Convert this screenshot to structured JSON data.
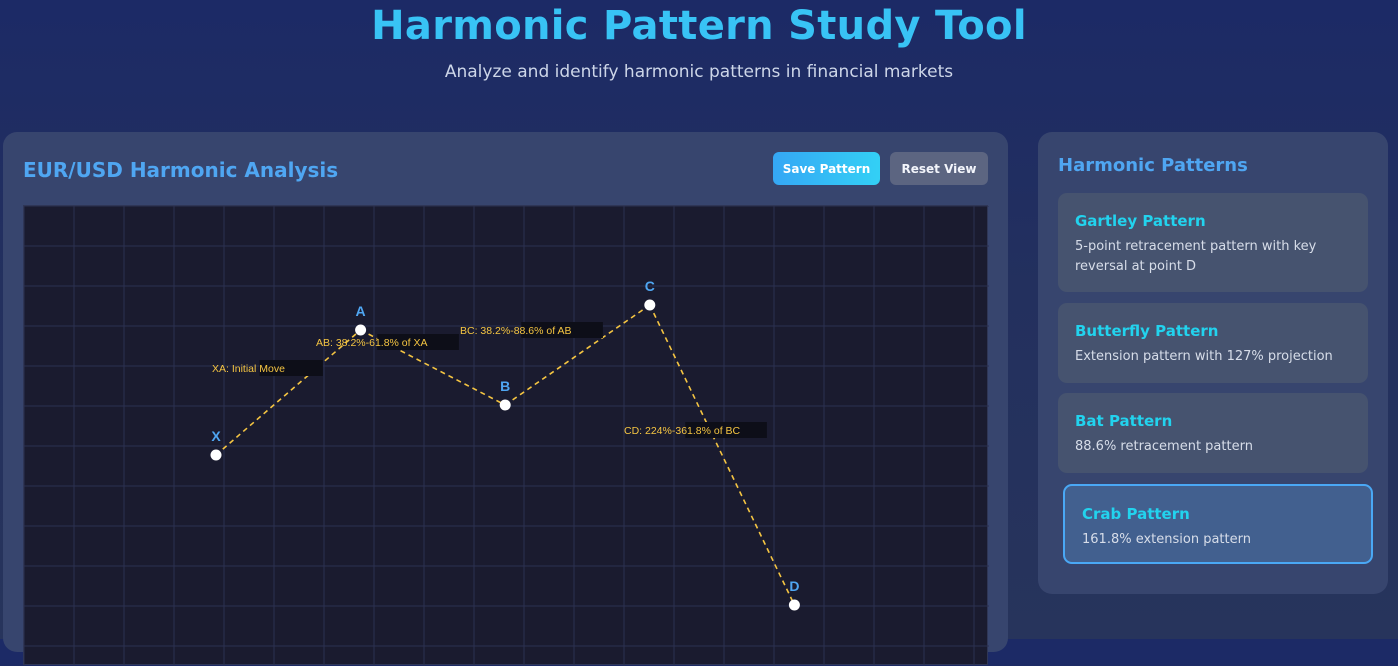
{
  "header": {
    "title": "Harmonic Pattern Study Tool",
    "subtitle": "Analyze and identify harmonic patterns in financial markets"
  },
  "main": {
    "title": "EUR/USD Harmonic Analysis",
    "save_label": "Save Pattern",
    "reset_label": "Reset View"
  },
  "chart_data": {
    "type": "line",
    "points": [
      {
        "label": "X",
        "x": 0,
        "y": 0
      },
      {
        "label": "A",
        "x": 1,
        "y": 0.5
      },
      {
        "label": "B",
        "x": 2,
        "y": 0.2
      },
      {
        "label": "C",
        "x": 3,
        "y": 0.6
      },
      {
        "label": "D",
        "x": 4,
        "y": -0.6
      }
    ],
    "annotations": [
      {
        "leg": "XA",
        "text": "XA: Initial Move"
      },
      {
        "leg": "AB",
        "text": "AB: 38.2%-61.8% of XA"
      },
      {
        "leg": "BC",
        "text": "BC: 38.2%-88.6% of AB"
      },
      {
        "leg": "CD",
        "text": "CD: 224%-361.8% of BC"
      }
    ],
    "grid": true,
    "colors": {
      "line": "#f5c542",
      "point": "#ffffff",
      "label": "#4fa6f2",
      "annotation": "#f5c542"
    }
  },
  "sidebar": {
    "title": "Harmonic Patterns",
    "patterns": [
      {
        "name": "Gartley Pattern",
        "desc": "5-point retracement pattern with key reversal at point D"
      },
      {
        "name": "Butterfly Pattern",
        "desc": "Extension pattern with 127% projection"
      },
      {
        "name": "Bat Pattern",
        "desc": "88.6% retracement pattern"
      },
      {
        "name": "Crab Pattern",
        "desc": "161.8% extension pattern"
      }
    ],
    "active_index": 3
  }
}
